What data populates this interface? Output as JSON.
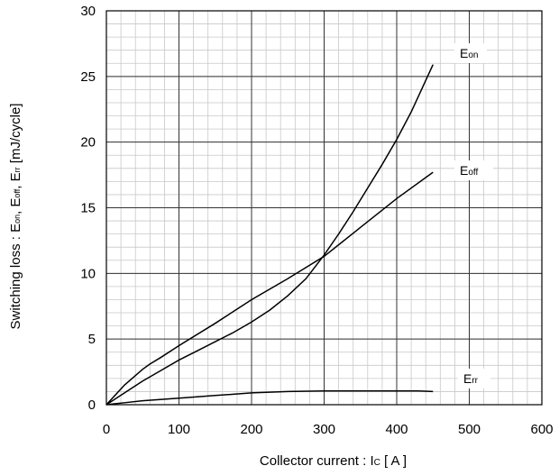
{
  "chart_data": {
    "type": "line",
    "xlabel": {
      "main": "Collector current : I",
      "sub": "C",
      "unit": " [ A ]"
    },
    "ylabel": {
      "parts": [
        {
          "t": "Switching loss : E",
          "s": false
        },
        {
          "t": "on",
          "s": true
        },
        {
          "t": ", E",
          "s": false
        },
        {
          "t": "off",
          "s": true
        },
        {
          "t": ", E",
          "s": false
        },
        {
          "t": "rr",
          "s": true
        },
        {
          "t": " [mJ/cycle]",
          "s": false
        }
      ]
    },
    "xlim": [
      0,
      600
    ],
    "ylim": [
      0,
      30
    ],
    "x_ticks": [
      0,
      100,
      200,
      300,
      400,
      500,
      600
    ],
    "y_ticks": [
      0,
      5,
      10,
      15,
      20,
      25,
      30
    ],
    "x_tick_labels": [
      "0",
      "100",
      "200",
      "300",
      "400",
      "500",
      "600"
    ],
    "y_tick_labels": [
      "0",
      "5",
      "10",
      "15",
      "20",
      "25",
      "30"
    ],
    "minor_x_step": 20,
    "minor_y_step": 1,
    "grid": true,
    "series": [
      {
        "name": "E",
        "sub": "on",
        "x": [
          0,
          25,
          50,
          75,
          100,
          125,
          150,
          175,
          200,
          225,
          250,
          275,
          300,
          320,
          340,
          360,
          380,
          400,
          420,
          440,
          450
        ],
        "y": [
          0,
          0.9,
          1.8,
          2.6,
          3.4,
          4.1,
          4.8,
          5.5,
          6.3,
          7.2,
          8.3,
          9.6,
          11.4,
          13.0,
          14.7,
          16.5,
          18.3,
          20.2,
          22.3,
          24.7,
          25.9
        ]
      },
      {
        "name": "E",
        "sub": "off",
        "x": [
          0,
          25,
          50,
          60,
          75,
          100,
          150,
          200,
          250,
          300,
          350,
          400,
          450
        ],
        "y": [
          0,
          1.5,
          2.7,
          3.1,
          3.6,
          4.5,
          6.2,
          8.0,
          9.6,
          11.3,
          13.5,
          15.7,
          17.7
        ]
      },
      {
        "name": "E",
        "sub": "rr",
        "x": [
          0,
          25,
          50,
          100,
          150,
          200,
          250,
          300,
          350,
          400,
          430,
          450
        ],
        "y": [
          0,
          0.15,
          0.3,
          0.5,
          0.7,
          0.9,
          1.0,
          1.05,
          1.05,
          1.05,
          1.05,
          1.0
        ]
      }
    ]
  }
}
